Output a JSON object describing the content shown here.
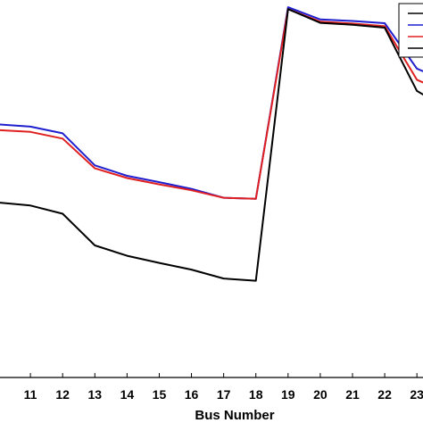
{
  "chart_data": {
    "type": "line",
    "title": "",
    "xlabel": "Bus Number",
    "ylabel": "",
    "x": [
      10,
      11,
      12,
      13,
      14,
      15,
      16,
      17,
      18,
      19,
      20,
      21,
      22,
      23,
      23.4
    ],
    "xticks": [
      11,
      12,
      13,
      14,
      15,
      16,
      17,
      18,
      19,
      20,
      21,
      22,
      23
    ],
    "xlim": [
      10.0,
      23.3
    ],
    "ylim": [
      0,
      100
    ],
    "grid": false,
    "legend": "top-right (partially cropped; series names not visible)",
    "series": [
      {
        "color": "#1f1fd0",
        "values": [
          68.0,
          67.4,
          65.6,
          57.0,
          54.2,
          52.5,
          50.7,
          48.3,
          48.0,
          99.5,
          96.2,
          95.8,
          95.2,
          83.0,
          81.5
        ]
      },
      {
        "color": "#e02020",
        "values": [
          66.5,
          66.0,
          64.2,
          56.2,
          53.6,
          51.9,
          50.3,
          48.3,
          48.0,
          99.0,
          95.6,
          95.1,
          94.4,
          80.0,
          78.5
        ]
      },
      {
        "color": "#000000",
        "values": [
          47.0,
          46.2,
          44.0,
          35.5,
          32.7,
          30.8,
          29.0,
          26.6,
          26.0,
          99.0,
          95.3,
          94.8,
          94.0,
          77.0,
          75.0
        ]
      }
    ]
  }
}
